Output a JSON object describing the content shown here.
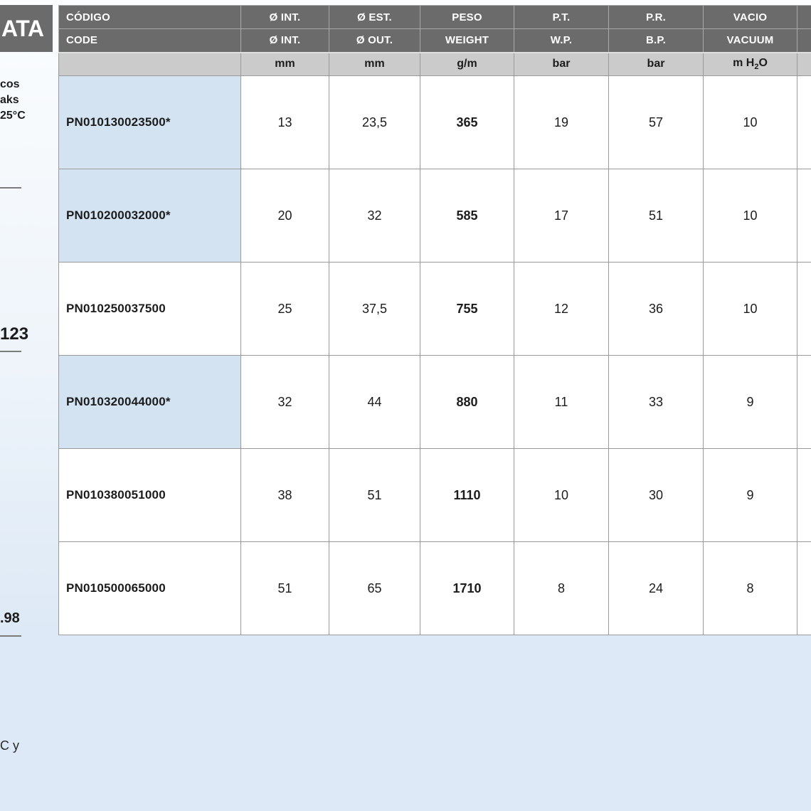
{
  "sidebar": {
    "badge": "ATA",
    "fragments": [
      "cos",
      "aks",
      "25°C"
    ],
    "value_top": "123",
    "value_bottom": ".98",
    "footnote": "C y"
  },
  "table": {
    "columns": [
      {
        "es": "CÓDIGO",
        "en": "CODE",
        "unit": ""
      },
      {
        "es": "Ø INT.",
        "en": "Ø INT.",
        "unit": "mm"
      },
      {
        "es": "Ø EST.",
        "en": "Ø OUT.",
        "unit": "mm"
      },
      {
        "es": "PESO",
        "en": "WEIGHT",
        "unit": "g/m"
      },
      {
        "es": "P.T.",
        "en": "W.P.",
        "unit": "bar"
      },
      {
        "es": "P.R.",
        "en": "B.P.",
        "unit": "bar"
      }
    ],
    "vacuum_column": {
      "es": "VACIO",
      "en": "VACUUM"
    },
    "vacuum_unit": {
      "prefix": "m H",
      "sub": "2",
      "suffix": "O"
    },
    "rows": [
      {
        "code": "PN010130023500*",
        "highlight": true,
        "values": [
          "13",
          "23,5",
          "365",
          "19",
          "57",
          "10"
        ]
      },
      {
        "code": "PN010200032000*",
        "highlight": true,
        "values": [
          "20",
          "32",
          "585",
          "17",
          "51",
          "10"
        ]
      },
      {
        "code": "PN010250037500",
        "highlight": false,
        "values": [
          "25",
          "37,5",
          "755",
          "12",
          "36",
          "10"
        ]
      },
      {
        "code": "PN010320044000*",
        "highlight": true,
        "values": [
          "32",
          "44",
          "880",
          "11",
          "33",
          "9"
        ]
      },
      {
        "code": "PN010380051000",
        "highlight": false,
        "values": [
          "38",
          "51",
          "1110",
          "10",
          "30",
          "9"
        ]
      },
      {
        "code": "PN010500065000",
        "highlight": false,
        "values": [
          "51",
          "65",
          "1710",
          "8",
          "24",
          "8"
        ]
      }
    ]
  },
  "colors": {
    "header_bg": "#6b6b6b",
    "units_bg": "#cbcbcb",
    "highlight_cell": "#d4e3f2",
    "page_blue": "#dde9f6",
    "grid_border": "#9a9a9a"
  }
}
